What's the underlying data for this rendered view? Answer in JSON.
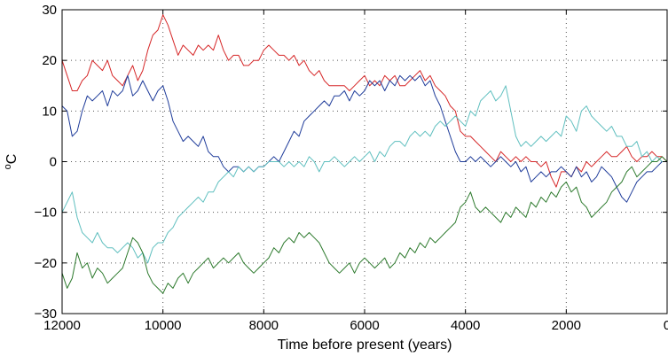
{
  "chart_data": {
    "type": "line",
    "xlabel": "Time before present (years)",
    "ylabel": "oC",
    "xlim": [
      12000,
      0
    ],
    "ylim": [
      -30,
      30
    ],
    "x_reversed": true,
    "grid": "dotted",
    "legend": "none",
    "xticks": [
      12000,
      10000,
      8000,
      6000,
      4000,
      2000,
      0
    ],
    "yticks": [
      -30,
      -20,
      -10,
      0,
      10,
      20,
      30
    ],
    "xtick_labels": [
      "12000",
      "10000",
      "8000",
      "6000",
      "4000",
      "2000",
      "0"
    ],
    "ytick_labels": [
      "−30",
      "−20",
      "−10",
      "0",
      "10",
      "20",
      "30"
    ],
    "series": [
      {
        "color": "#d62728",
        "x": [
          12000,
          11900,
          11800,
          11700,
          11600,
          11500,
          11400,
          11300,
          11200,
          11100,
          11000,
          10900,
          10800,
          10700,
          10600,
          10500,
          10400,
          10300,
          10200,
          10100,
          10000,
          9900,
          9800,
          9700,
          9600,
          9500,
          9400,
          9300,
          9200,
          9100,
          9000,
          8900,
          8800,
          8700,
          8600,
          8500,
          8400,
          8300,
          8200,
          8100,
          8000,
          7900,
          7800,
          7700,
          7600,
          7500,
          7400,
          7300,
          7200,
          7100,
          7000,
          6900,
          6800,
          6700,
          6600,
          6500,
          6400,
          6300,
          6200,
          6100,
          6000,
          5900,
          5800,
          5700,
          5600,
          5500,
          5400,
          5300,
          5200,
          5100,
          5000,
          4900,
          4800,
          4700,
          4600,
          4500,
          4400,
          4300,
          4200,
          4100,
          4000,
          3900,
          3800,
          3700,
          3600,
          3500,
          3400,
          3300,
          3200,
          3100,
          3000,
          2900,
          2800,
          2700,
          2600,
          2500,
          2400,
          2300,
          2200,
          2100,
          2000,
          1900,
          1800,
          1700,
          1600,
          1500,
          1400,
          1300,
          1200,
          1100,
          1000,
          900,
          800,
          700,
          600,
          500,
          400,
          300,
          200,
          100,
          0
        ],
        "values": [
          20,
          17,
          14,
          14,
          16,
          17,
          20,
          19,
          18,
          20,
          17,
          16,
          15,
          17,
          19,
          16,
          18,
          22,
          25,
          26,
          29,
          27,
          24,
          21,
          23,
          22,
          21,
          23,
          22,
          23,
          22,
          25,
          22,
          20,
          21,
          21,
          19,
          19,
          20,
          20,
          22,
          23,
          22,
          21,
          21,
          20,
          21,
          19,
          20,
          18,
          17,
          18,
          16,
          15,
          15,
          15,
          15,
          14,
          15,
          16,
          17,
          15,
          16,
          15,
          17,
          16,
          17,
          15,
          15,
          16,
          17,
          18,
          16,
          17,
          15,
          14,
          13,
          11,
          10,
          6,
          5,
          5,
          4,
          3,
          2,
          1,
          0,
          2,
          1,
          0,
          1,
          0,
          1,
          0,
          0,
          -1,
          0,
          -3,
          -5,
          -2,
          -2,
          -3,
          -1,
          -2,
          0,
          -1,
          0,
          1,
          2,
          1,
          1,
          2,
          3,
          1,
          0,
          1,
          1,
          2,
          1,
          1,
          0
        ]
      },
      {
        "color": "#1f3c9a",
        "x": [
          12000,
          11900,
          11800,
          11700,
          11600,
          11500,
          11400,
          11300,
          11200,
          11100,
          11000,
          10900,
          10800,
          10700,
          10600,
          10500,
          10400,
          10300,
          10200,
          10100,
          10000,
          9900,
          9800,
          9700,
          9600,
          9500,
          9400,
          9300,
          9200,
          9100,
          9000,
          8900,
          8800,
          8700,
          8600,
          8500,
          8400,
          8300,
          8200,
          8100,
          8000,
          7900,
          7800,
          7700,
          7600,
          7500,
          7400,
          7300,
          7200,
          7100,
          7000,
          6900,
          6800,
          6700,
          6600,
          6500,
          6400,
          6300,
          6200,
          6100,
          6000,
          5900,
          5800,
          5700,
          5600,
          5500,
          5400,
          5300,
          5200,
          5100,
          5000,
          4900,
          4800,
          4700,
          4600,
          4500,
          4400,
          4300,
          4200,
          4100,
          4000,
          3900,
          3800,
          3700,
          3600,
          3500,
          3400,
          3300,
          3200,
          3100,
          3000,
          2900,
          2800,
          2700,
          2600,
          2500,
          2400,
          2300,
          2200,
          2100,
          2000,
          1900,
          1800,
          1700,
          1600,
          1500,
          1400,
          1300,
          1200,
          1100,
          1000,
          900,
          800,
          700,
          600,
          500,
          400,
          300,
          200,
          100,
          0
        ],
        "values": [
          11,
          10,
          5,
          6,
          10,
          13,
          12,
          13,
          14,
          11,
          14,
          13,
          14,
          17,
          13,
          14,
          16,
          14,
          12,
          14,
          15,
          12,
          8,
          6,
          4,
          5,
          4,
          3,
          5,
          2,
          1,
          1,
          -1,
          -2,
          -1,
          -1,
          -2,
          -1,
          -2,
          -1,
          -1,
          0,
          1,
          0,
          2,
          4,
          6,
          5,
          8,
          9,
          10,
          11,
          12,
          11,
          13,
          13,
          14,
          12,
          14,
          13,
          14,
          16,
          15,
          16,
          14,
          16,
          15,
          17,
          16,
          17,
          16,
          17,
          15,
          16,
          13,
          11,
          8,
          5,
          2,
          0,
          0,
          1,
          0,
          1,
          0,
          -1,
          0,
          1,
          0,
          -1,
          0,
          -2,
          -1,
          -4,
          -3,
          -2,
          -3,
          -2,
          -2,
          -1,
          -2,
          -3,
          -1,
          -3,
          -2,
          -4,
          -3,
          -1,
          -2,
          -3,
          -5,
          -7,
          -8,
          -6,
          -4,
          -3,
          -2,
          -2,
          -1,
          0,
          0
        ]
      },
      {
        "color": "#5fbfbf",
        "x": [
          12000,
          11900,
          11800,
          11700,
          11600,
          11500,
          11400,
          11300,
          11200,
          11100,
          11000,
          10900,
          10800,
          10700,
          10600,
          10500,
          10400,
          10300,
          10200,
          10100,
          10000,
          9900,
          9800,
          9700,
          9600,
          9500,
          9400,
          9300,
          9200,
          9100,
          9000,
          8900,
          8800,
          8700,
          8600,
          8500,
          8400,
          8300,
          8200,
          8100,
          8000,
          7900,
          7800,
          7700,
          7600,
          7500,
          7400,
          7300,
          7200,
          7100,
          7000,
          6900,
          6800,
          6700,
          6600,
          6500,
          6400,
          6300,
          6200,
          6100,
          6000,
          5900,
          5800,
          5700,
          5600,
          5500,
          5400,
          5300,
          5200,
          5100,
          5000,
          4900,
          4800,
          4700,
          4600,
          4500,
          4400,
          4300,
          4200,
          4100,
          4000,
          3900,
          3800,
          3700,
          3600,
          3500,
          3400,
          3300,
          3200,
          3100,
          3000,
          2900,
          2800,
          2700,
          2600,
          2500,
          2400,
          2300,
          2200,
          2100,
          2000,
          1900,
          1800,
          1700,
          1600,
          1500,
          1400,
          1300,
          1200,
          1100,
          1000,
          900,
          800,
          700,
          600,
          500,
          400,
          300,
          200,
          100,
          0
        ],
        "values": [
          -10,
          -8,
          -6,
          -11,
          -14,
          -15,
          -16,
          -14,
          -16,
          -17,
          -17,
          -18,
          -17,
          -16,
          -17,
          -19,
          -18,
          -20,
          -17,
          -16,
          -16,
          -14,
          -13,
          -11,
          -10,
          -9,
          -8,
          -7,
          -8,
          -6,
          -6,
          -4,
          -3,
          -2,
          -3,
          -1,
          -2,
          -1,
          -2,
          -1,
          -1,
          0,
          0,
          0,
          -1,
          0,
          -1,
          0,
          -1,
          1,
          0,
          -2,
          0,
          0,
          1,
          0,
          -1,
          0,
          1,
          0,
          1,
          2,
          0,
          2,
          1,
          3,
          4,
          4,
          3,
          5,
          6,
          5,
          6,
          5,
          7,
          8,
          7,
          8,
          9,
          8,
          7,
          10,
          9,
          12,
          13,
          14,
          12,
          13,
          15,
          10,
          5,
          3,
          4,
          3,
          4,
          5,
          4,
          5,
          6,
          5,
          9,
          8,
          6,
          10,
          11,
          9,
          8,
          7,
          6,
          7,
          5,
          5,
          3,
          3,
          4,
          1,
          2,
          0,
          1,
          0,
          0
        ]
      },
      {
        "color": "#2d7a2d",
        "x": [
          12000,
          11900,
          11800,
          11700,
          11600,
          11500,
          11400,
          11300,
          11200,
          11100,
          11000,
          10900,
          10800,
          10700,
          10600,
          10500,
          10400,
          10300,
          10200,
          10100,
          10000,
          9900,
          9800,
          9700,
          9600,
          9500,
          9400,
          9300,
          9200,
          9100,
          9000,
          8900,
          8800,
          8700,
          8600,
          8500,
          8400,
          8300,
          8200,
          8100,
          8000,
          7900,
          7800,
          7700,
          7600,
          7500,
          7400,
          7300,
          7200,
          7100,
          7000,
          6900,
          6800,
          6700,
          6600,
          6500,
          6400,
          6300,
          6200,
          6100,
          6000,
          5900,
          5800,
          5700,
          5600,
          5500,
          5400,
          5300,
          5200,
          5100,
          5000,
          4900,
          4800,
          4700,
          4600,
          4500,
          4400,
          4300,
          4200,
          4100,
          4000,
          3900,
          3800,
          3700,
          3600,
          3500,
          3400,
          3300,
          3200,
          3100,
          3000,
          2900,
          2800,
          2700,
          2600,
          2500,
          2400,
          2300,
          2200,
          2100,
          2000,
          1900,
          1800,
          1700,
          1600,
          1500,
          1400,
          1300,
          1200,
          1100,
          1000,
          900,
          800,
          700,
          600,
          500,
          400,
          300,
          200,
          100,
          0
        ],
        "values": [
          -22,
          -25,
          -23,
          -18,
          -21,
          -20,
          -23,
          -21,
          -22,
          -24,
          -23,
          -22,
          -21,
          -18,
          -15,
          -16,
          -18,
          -22,
          -24,
          -25,
          -26,
          -24,
          -25,
          -23,
          -22,
          -24,
          -22,
          -21,
          -20,
          -19,
          -21,
          -20,
          -19,
          -20,
          -19,
          -18,
          -20,
          -21,
          -22,
          -21,
          -20,
          -19,
          -17,
          -18,
          -16,
          -15,
          -16,
          -14,
          -15,
          -14,
          -15,
          -16,
          -18,
          -20,
          -21,
          -22,
          -21,
          -20,
          -22,
          -20,
          -19,
          -20,
          -21,
          -20,
          -19,
          -21,
          -20,
          -18,
          -19,
          -17,
          -18,
          -16,
          -17,
          -15,
          -16,
          -15,
          -14,
          -13,
          -12,
          -9,
          -8,
          -6,
          -9,
          -10,
          -9,
          -10,
          -11,
          -12,
          -10,
          -11,
          -9,
          -10,
          -11,
          -8,
          -9,
          -7,
          -8,
          -6,
          -7,
          -5,
          -4,
          -6,
          -5,
          -8,
          -9,
          -11,
          -10,
          -9,
          -8,
          -6,
          -5,
          -4,
          -2,
          -1,
          -3,
          -2,
          -1,
          0,
          0,
          1,
          0
        ]
      }
    ]
  }
}
